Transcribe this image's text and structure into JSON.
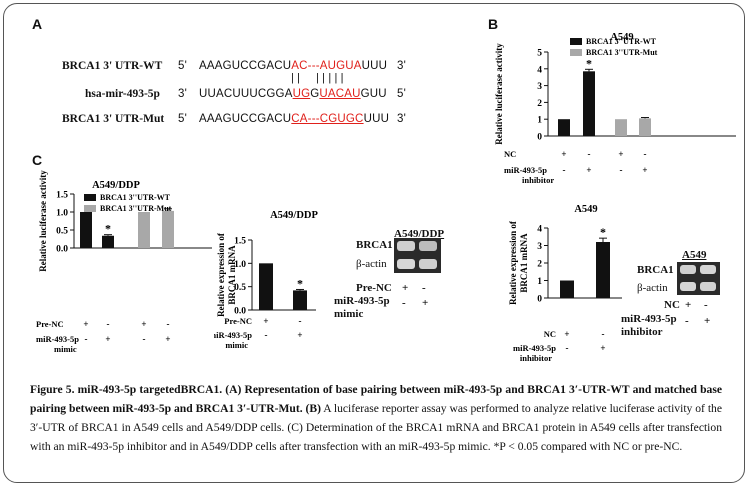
{
  "panel_labels": {
    "a": "A",
    "b": "B",
    "c": "C"
  },
  "panel_a": {
    "rows": [
      {
        "label": "BRCA1 3' UTR-WT",
        "five": "5'",
        "pre": "AAAGUCCGACU",
        "red": "AC---AUGUA",
        "post": "UUU",
        "three": "3'"
      },
      {
        "label": "hsa-mir-493-5p",
        "five": "3'",
        "pre": "UUACUUUCGGA",
        "red": "UG",
        "mid": "G",
        "red2": "UACAU",
        "post": "GUU",
        "three": "5'"
      },
      {
        "label": "BRCA1 3' UTR-Mut",
        "five": "5'",
        "pre": "AAAGUCCGACU",
        "red": "CA---CGUGC",
        "post": "UUU",
        "three": "3'"
      }
    ],
    "bonds": "||  |||||"
  },
  "chart_data": [
    {
      "id": "B",
      "type": "bar",
      "title": "A549",
      "ylabel": "Relative luciferase activity",
      "ylim": [
        0,
        5
      ],
      "yticks": [
        0,
        1,
        2,
        3,
        4,
        5
      ],
      "legend": [
        "BRCA1 3''UTR-WT",
        "BRCA1 3''UTR-Mut"
      ],
      "series_colors": [
        "#111111",
        "#a8a8a8"
      ],
      "values": [
        1.0,
        3.85,
        1.0,
        1.05
      ],
      "errors": [
        0,
        0.12,
        0,
        0.05
      ],
      "bar_series": [
        0,
        0,
        1,
        1
      ],
      "significance": [
        "",
        "*",
        "",
        ""
      ],
      "row_labels": [
        "NC",
        "miR-493-5p inhibitor"
      ],
      "row_signs": [
        [
          "+",
          "-",
          "+",
          "-"
        ],
        [
          "-",
          "+",
          "-",
          "+"
        ]
      ]
    },
    {
      "id": "C1",
      "type": "bar",
      "title": "A549/DDP",
      "ylabel": "Relative luciferase activity",
      "ylim": [
        0,
        1.5
      ],
      "yticks": [
        "0.0",
        "0.5",
        "1.0",
        "1.5"
      ],
      "legend": [
        "BRCA1 3''UTR-WT",
        "BRCA1 3''UTR-Mut"
      ],
      "series_colors": [
        "#111111",
        "#a8a8a8"
      ],
      "values": [
        1.0,
        0.34,
        1.0,
        1.03
      ],
      "errors": [
        0,
        0.03,
        0,
        0.06
      ],
      "bar_series": [
        0,
        0,
        1,
        1
      ],
      "significance": [
        "",
        "*",
        "",
        ""
      ],
      "row_labels": [
        "Pre-NC",
        "miR-493-5p mimic"
      ],
      "row_signs": [
        [
          "+",
          "-",
          "+",
          "-"
        ],
        [
          "-",
          "+",
          "-",
          "+"
        ]
      ]
    },
    {
      "id": "C2",
      "type": "bar",
      "title": "A549/DDP",
      "ylabel": "Relative expression of BRCA1 mRNA",
      "ylim": [
        0,
        1.5
      ],
      "yticks": [
        "0.0",
        "0.5",
        "1.0",
        "1.5"
      ],
      "values": [
        1.0,
        0.42
      ],
      "errors": [
        0,
        0.02
      ],
      "significance": [
        "",
        "*"
      ],
      "row_labels": [
        "Pre-NC",
        "miR-493-5p mimic"
      ],
      "row_signs": [
        [
          "+",
          "-"
        ],
        [
          "-",
          "+"
        ]
      ]
    },
    {
      "id": "C3",
      "type": "bar",
      "title": "A549",
      "ylabel": "Relative expression of BRCA1 mRNA",
      "ylim": [
        0,
        4
      ],
      "yticks": [
        0,
        1,
        2,
        3,
        4
      ],
      "values": [
        1.0,
        3.2
      ],
      "errors": [
        0,
        0.22
      ],
      "significance": [
        "",
        "*"
      ],
      "row_labels": [
        "NC",
        "miR-493-5p inhibitor"
      ],
      "row_signs": [
        [
          "+",
          "-"
        ],
        [
          "-",
          "+"
        ]
      ]
    }
  ],
  "blot_ddp": {
    "title": "A549/DDP",
    "rows": [
      "BRCA1",
      "β-actin"
    ],
    "cond1": "Pre-NC",
    "cond2": "miR-493-5p mimic",
    "signs1": [
      "+",
      "-"
    ],
    "signs2": [
      "-",
      "+"
    ]
  },
  "blot_a549": {
    "title": "A549",
    "rows": [
      "BRCA1",
      "β-actin"
    ],
    "cond1": "NC",
    "cond2": "miR-493-5p inhibitor",
    "signs1": [
      "+",
      "-"
    ],
    "signs2": [
      "-",
      "+"
    ]
  },
  "caption": {
    "bold": "Figure 5. miR-493-5p targetedBRCA1. (A) Representation of base pairing between miR-493-5p and BRCA1 3′-UTR-WT and matched base pairing between miR-493-5p and BRCA1 3′-UTR-Mut. (B)",
    "rest": " A luciferase reporter assay was performed to analyze relative luciferase activity of the 3′-UTR of BRCA1 in A549 cells and A549/DDP cells. (C) Determination of the BRCA1 mRNA and BRCA1 protein in A549 cells after transfection with an miR-493-5p inhibitor and in A549/DDP cells after transfection with an miR-493-5p mimic. *P < 0.05 compared with NC or pre-NC."
  }
}
